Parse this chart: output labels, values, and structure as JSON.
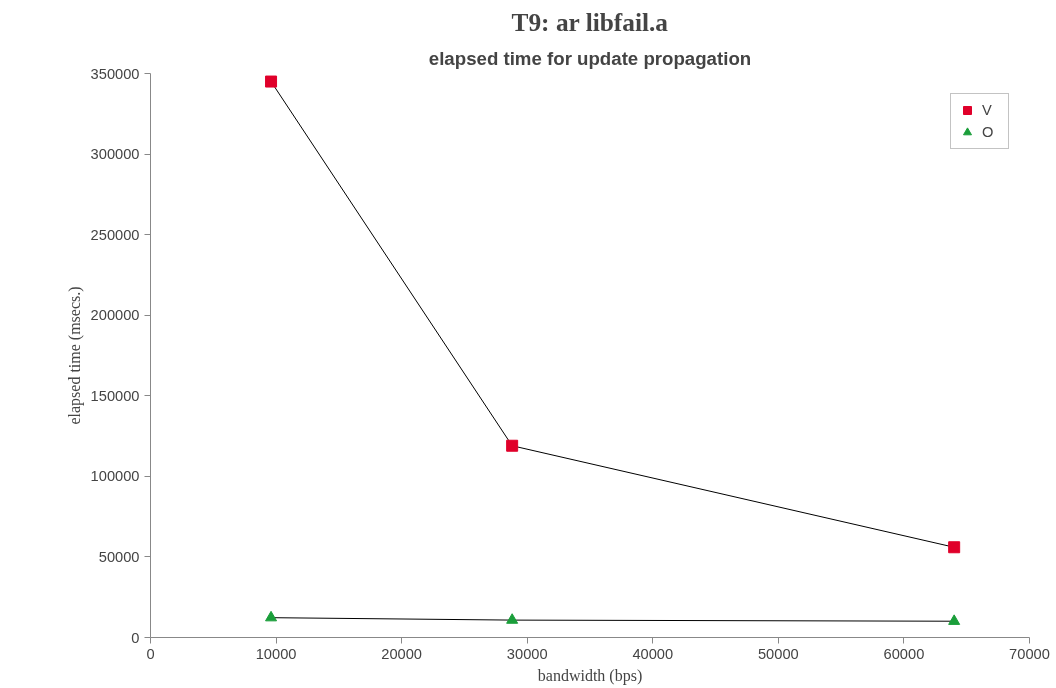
{
  "chart_data": {
    "type": "line",
    "title": "T9: ar libfail.a",
    "subtitle": "elapsed time for update propagation",
    "xlabel": "bandwidth (bps)",
    "ylabel": "elapsed time (msecs.)",
    "x": [
      9600,
      28800,
      64000
    ],
    "series": [
      {
        "name": "V",
        "color": "#e0002a",
        "marker": "square",
        "values": [
          345000,
          119000,
          56000
        ]
      },
      {
        "name": "O",
        "color": "#1a9e3a",
        "marker": "triangle",
        "values": [
          12300,
          10800,
          10100
        ]
      }
    ],
    "xlim": [
      0,
      70000
    ],
    "xticks": [
      0,
      10000,
      20000,
      30000,
      40000,
      50000,
      60000,
      70000
    ],
    "ylim": [
      0,
      350000
    ],
    "yticks": [
      0,
      50000,
      100000,
      150000,
      200000,
      250000,
      300000,
      350000
    ],
    "grid": false,
    "legend": "top right",
    "line_style": "solid"
  }
}
